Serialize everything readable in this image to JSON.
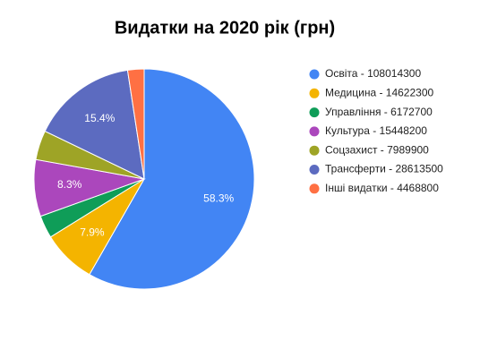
{
  "chart_data": {
    "type": "pie",
    "title": "Видатки на 2020 рік  (грн)",
    "categories": [
      "Освіта - 108014300",
      "Медицина - 14622300",
      "Управління - 6172700",
      "Культура - 15448200",
      "Соцзахист - 7989900",
      "Трансферти - 28613500",
      "Інші видатки - 4468800"
    ],
    "values": [
      108014300,
      14622300,
      6172700,
      15448200,
      7989900,
      28613500,
      4468800
    ],
    "value_labels": [
      "58.3%",
      "7.9%",
      null,
      "8.3%",
      null,
      "15.4%",
      null
    ],
    "colors": [
      "#4285f4",
      "#f4b400",
      "#0f9d58",
      "#ab47bc",
      "#9ea426",
      "#5c6bc0",
      "#ff7043"
    ],
    "legend": "right"
  }
}
